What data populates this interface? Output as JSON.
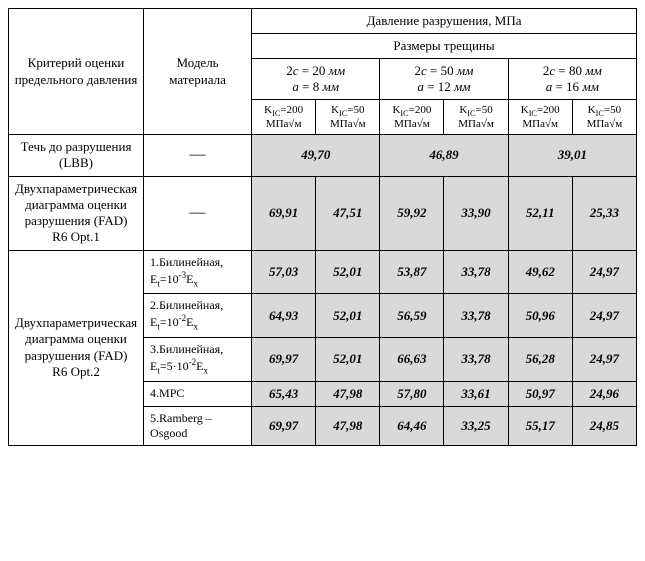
{
  "header": {
    "criterion": "Критерий оценки предельного давления",
    "model": "Модель материала",
    "pressure": "Давление разрушения, МПа",
    "crack": "Размеры трещины",
    "groups": [
      {
        "c_html": "2<i>c</i> = 20 <i>мм</i>",
        "a_html": "<i>a</i> = 8 <i>мм</i>"
      },
      {
        "c_html": "2<i>c</i> = 50 <i>мм</i>",
        "a_html": "<i>a</i> = 12 <i>мм</i>"
      },
      {
        "c_html": "2<i>c</i> = 80 <i>мм</i>",
        "a_html": "<i>a</i> = 16 <i>мм</i>"
      }
    ],
    "kic_labels": [
      "K<sub>IC</sub>=200 МПа√м",
      "K<sub>IC</sub>=50 МПа√м"
    ]
  },
  "rows": [
    {
      "criterion_html": "Течь до разрушения (LBB)",
      "model_html": "—",
      "values": [
        {
          "text": "49,70",
          "span": 2
        },
        {
          "text": "46,89",
          "span": 2
        },
        {
          "text": "39,01",
          "span": 2
        }
      ],
      "dash_model": true
    },
    {
      "criterion_html": "Двухпараметрическая диаграмма оценки разрушения (FAD)<br>R6 Opt.1",
      "model_html": "—",
      "values": [
        {
          "text": "69,91"
        },
        {
          "text": "47,51"
        },
        {
          "text": "59,92"
        },
        {
          "text": "33,90"
        },
        {
          "text": "52,11"
        },
        {
          "text": "25,33"
        }
      ],
      "dash_model": true
    },
    {
      "criterion_html": "Двухпараметрическая диаграмма оценки разрушения (FAD)<br>R6 Opt.2",
      "criterion_rowspan": 5,
      "model_html": "1.Билинейная, E<sub>t</sub>=10<sup>-3</sup>E<sub>x</sub>",
      "values": [
        {
          "text": "57,03"
        },
        {
          "text": "52,01"
        },
        {
          "text": "53,87"
        },
        {
          "text": "33,78"
        },
        {
          "text": "49,62"
        },
        {
          "text": "24,97"
        }
      ]
    },
    {
      "model_html": "2.Билинейная, E<sub>t</sub>=10<sup>-2</sup>E<sub>x</sub>",
      "values": [
        {
          "text": "64,93"
        },
        {
          "text": "52,01"
        },
        {
          "text": "56,59"
        },
        {
          "text": "33,78"
        },
        {
          "text": "50,96"
        },
        {
          "text": "24,97"
        }
      ]
    },
    {
      "model_html": "3.Билинейная, E<sub>t</sub>=5·10<sup>-2</sup>E<sub>x</sub>",
      "values": [
        {
          "text": "69,97"
        },
        {
          "text": "52,01"
        },
        {
          "text": "66,63"
        },
        {
          "text": "33,78"
        },
        {
          "text": "56,28"
        },
        {
          "text": "24,97"
        }
      ]
    },
    {
      "model_html": "4.MPC",
      "values": [
        {
          "text": "65,43"
        },
        {
          "text": "47,98"
        },
        {
          "text": "57,80"
        },
        {
          "text": "33,61"
        },
        {
          "text": "50,97"
        },
        {
          "text": "24,96"
        }
      ]
    },
    {
      "model_html": "5.Ramberg – Osgood",
      "values": [
        {
          "text": "69,97"
        },
        {
          "text": "47,98"
        },
        {
          "text": "64,46"
        },
        {
          "text": "33,25"
        },
        {
          "text": "55,17"
        },
        {
          "text": "24,85"
        }
      ]
    }
  ]
}
